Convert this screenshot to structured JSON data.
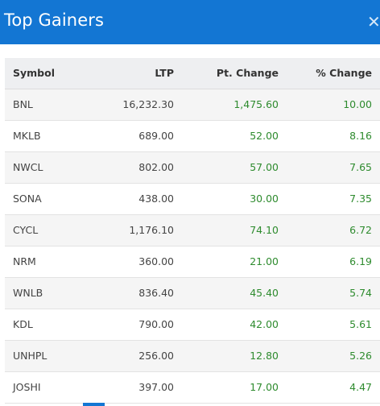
{
  "header": {
    "title": "Top Gainers",
    "close_glyph": "✕"
  },
  "colors": {
    "header_bg": "#1376d3",
    "gain_green": "#2e8b2e"
  },
  "table": {
    "columns": [
      "Symbol",
      "LTP",
      "Pt. Change",
      "% Change"
    ],
    "rows": [
      {
        "symbol": "BNL",
        "ltp": "16,232.30",
        "pt_change": "1,475.60",
        "pct_change": "10.00"
      },
      {
        "symbol": "MKLB",
        "ltp": "689.00",
        "pt_change": "52.00",
        "pct_change": "8.16"
      },
      {
        "symbol": "NWCL",
        "ltp": "802.00",
        "pt_change": "57.00",
        "pct_change": "7.65"
      },
      {
        "symbol": "SONA",
        "ltp": "438.00",
        "pt_change": "30.00",
        "pct_change": "7.35"
      },
      {
        "symbol": "CYCL",
        "ltp": "1,176.10",
        "pt_change": "74.10",
        "pct_change": "6.72"
      },
      {
        "symbol": "NRM",
        "ltp": "360.00",
        "pt_change": "21.00",
        "pct_change": "6.19"
      },
      {
        "symbol": "WNLB",
        "ltp": "836.40",
        "pt_change": "45.40",
        "pct_change": "5.74"
      },
      {
        "symbol": "KDL",
        "ltp": "790.00",
        "pt_change": "42.00",
        "pct_change": "5.61"
      },
      {
        "symbol": "UNHPL",
        "ltp": "256.00",
        "pt_change": "12.80",
        "pct_change": "5.26"
      },
      {
        "symbol": "JOSHI",
        "ltp": "397.00",
        "pt_change": "17.00",
        "pct_change": "4.47"
      }
    ]
  }
}
